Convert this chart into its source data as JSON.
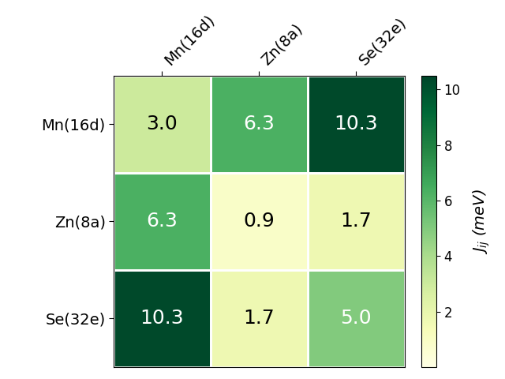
{
  "labels": [
    "Mn(16d)",
    "Zn(8a)",
    "Se(32e)"
  ],
  "matrix": [
    [
      3.0,
      6.3,
      10.3
    ],
    [
      6.3,
      0.9,
      1.7
    ],
    [
      10.3,
      1.7,
      5.0
    ]
  ],
  "vmin": 0,
  "vmax": 10.5,
  "colormap": "YlGn",
  "colorbar_label": "$J_{ij}$ (meV)",
  "colorbar_ticks": [
    2,
    4,
    6,
    8,
    10
  ],
  "text_threshold": 5.0,
  "text_color_high": "white",
  "text_color_low": "black",
  "fontsize_values": 18,
  "fontsize_labels": 14,
  "fontsize_colorbar": 14,
  "background_color": "white"
}
